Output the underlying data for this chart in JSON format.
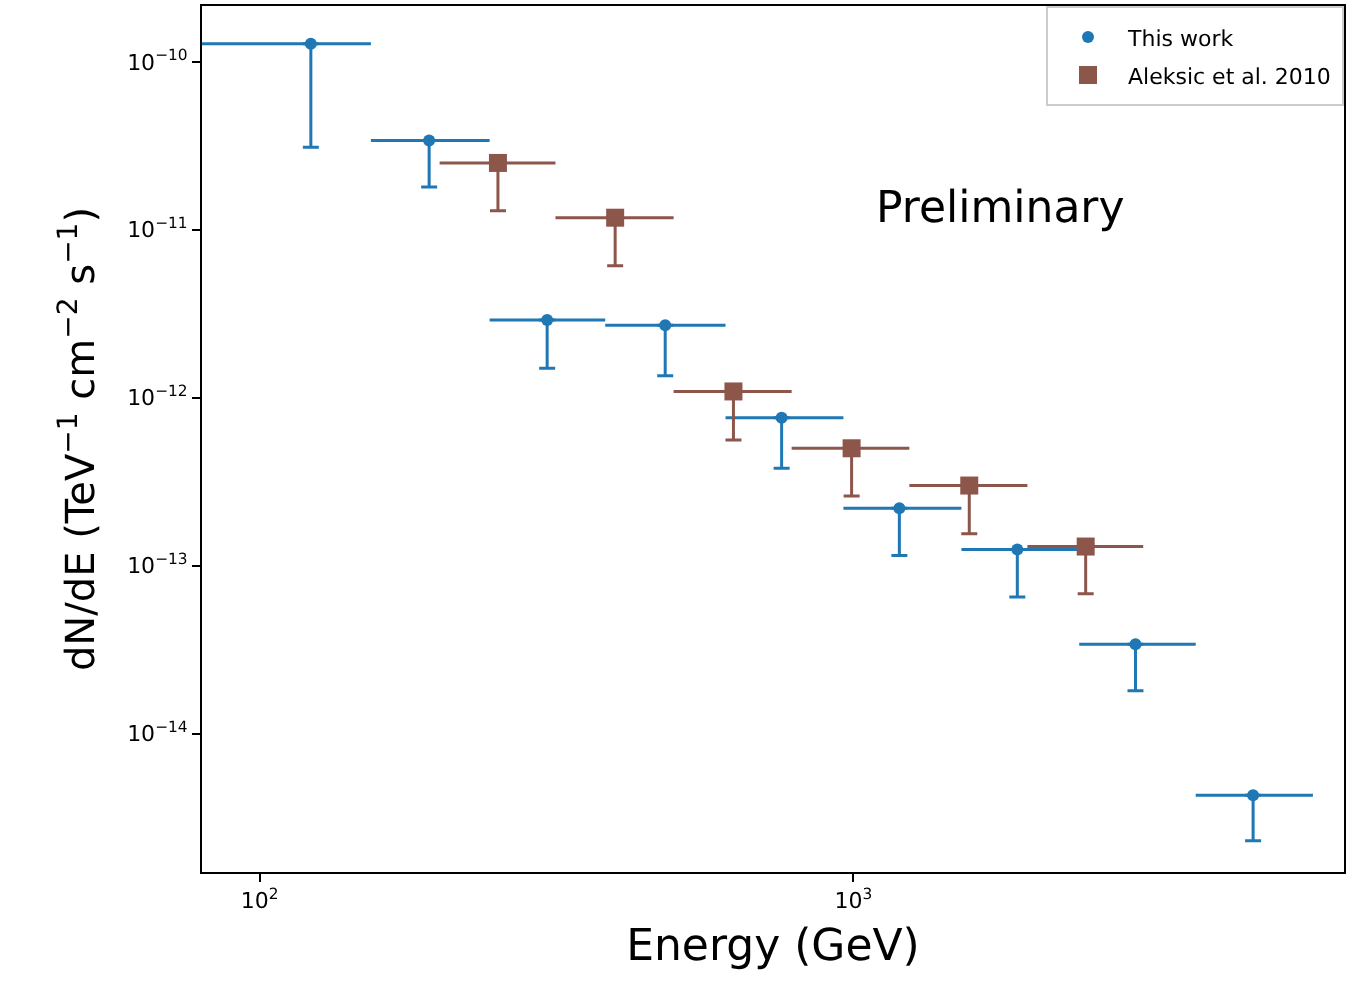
{
  "chart_data": {
    "type": "scatter",
    "xlabel": "Energy (GeV)",
    "ylabel": "dN/dE (TeV$^{−1}$ cm$^{−2}$ s$^{−1}$)",
    "log": "xy",
    "legend": "top right",
    "grid": false,
    "annotations": [
      "Preliminary"
    ],
    "xlim": [
      80,
      6700
    ],
    "xticks": [
      {
        "value": 100,
        "label": "10$^{2}$"
      },
      {
        "value": 1000,
        "label": "10$^{3}$"
      }
    ],
    "ylim": [
      1.5e-15,
      2.15e-10
    ],
    "yticks": [
      {
        "value": 1e-10,
        "label": "10$^{−10}$"
      },
      {
        "value": 1e-11,
        "label": "10$^{−11}$"
      },
      {
        "value": 1e-12,
        "label": "10$^{−12}$"
      },
      {
        "value": 1e-13,
        "label": "10$^{−13}$"
      },
      {
        "value": 1e-14,
        "label": "10$^{−14}$"
      }
    ],
    "series": [
      {
        "name": "This work",
        "color": "#1f77b4",
        "marker": "circle",
        "x": [
          122,
          193,
          305,
          482,
          757,
          1195,
          1888,
          2985,
          4710
        ],
        "values": [
          1.28e-10,
          3.4e-11,
          2.9e-12,
          2.7e-12,
          7.6e-13,
          2.2e-13,
          1.25e-13,
          3.4e-14,
          4.3e-15
        ],
        "errors": [
          [
            3.1e-11,
            1.28e-10
          ],
          [
            1.8e-11,
            3.4e-11
          ],
          [
            1.5e-12,
            2.9e-12
          ],
          [
            1.35e-12,
            2.7e-12
          ],
          [
            3.8e-13,
            7.6e-13
          ],
          [
            1.15e-13,
            2.2e-13
          ],
          [
            6.5e-14,
            1.25e-13
          ],
          [
            1.8e-14,
            3.4e-14
          ],
          [
            2.3e-15,
            4.3e-15
          ]
        ],
        "xerrors": [
          [
            79,
            154
          ],
          [
            154,
            244
          ],
          [
            244,
            382
          ],
          [
            382,
            609
          ],
          [
            609,
            962
          ],
          [
            962,
            1520
          ],
          [
            1520,
            2400
          ],
          [
            2400,
            3770
          ],
          [
            3770,
            5940
          ]
        ]
      },
      {
        "name": "Aleksic et al. 2010",
        "color": "#8c564b",
        "marker": "square",
        "x": [
          252,
          397,
          628,
          993,
          1567,
          2461
        ],
        "values": [
          2.5e-11,
          1.18e-11,
          1.09e-12,
          5e-13,
          3e-13,
          1.3e-13
        ],
        "errors": [
          [
            1.3e-11,
            2.5e-11
          ],
          [
            6.1e-12,
            1.18e-11
          ],
          [
            5.6e-13,
            1.09e-12
          ],
          [
            2.6e-13,
            5e-13
          ],
          [
            1.55e-13,
            3e-13
          ],
          [
            6.8e-14,
            1.3e-13
          ]
        ],
        "xerrors": [
          [
            201,
            315
          ],
          [
            315,
            498
          ],
          [
            498,
            787
          ],
          [
            787,
            1242
          ],
          [
            1242,
            1963
          ],
          [
            1963,
            3076
          ]
        ]
      }
    ]
  }
}
